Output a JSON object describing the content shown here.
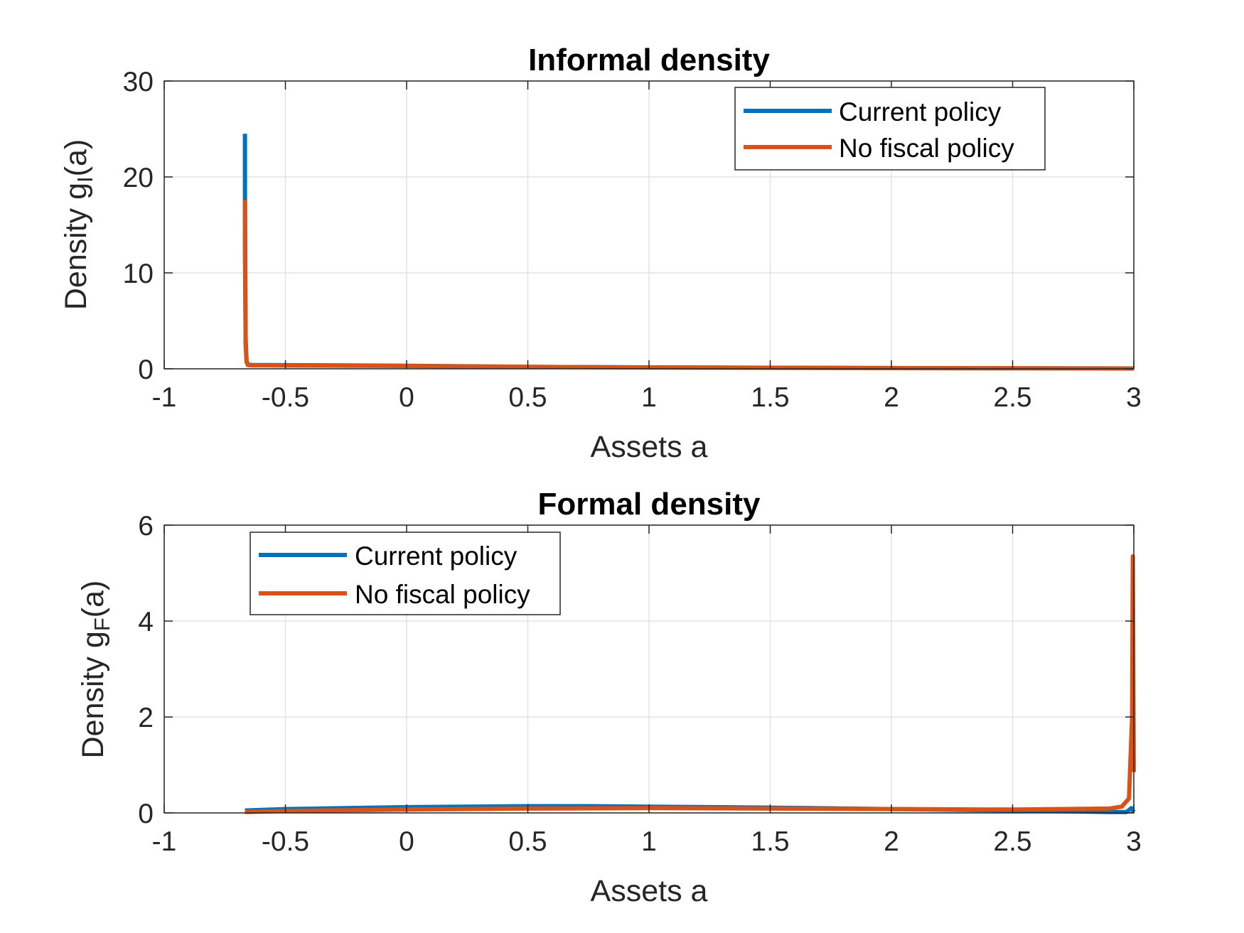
{
  "colors": {
    "current": "#0072BD",
    "nofiscal": "#D95319",
    "grid": "#e3e3e3",
    "axis": "#262626"
  },
  "chart_data": [
    {
      "type": "line",
      "title": "Informal density",
      "xlabel": "Assets a",
      "ylabel": {
        "prefix": "Density g",
        "sub": "I",
        "suffix": "(a)"
      },
      "xlim": [
        -1,
        3
      ],
      "ylim": [
        0,
        30
      ],
      "xticks": [
        -1,
        -0.5,
        0,
        0.5,
        1,
        1.5,
        2,
        2.5,
        3
      ],
      "xtick_labels": [
        "-1",
        "-0.5",
        "0",
        "0.5",
        "1",
        "1.5",
        "2",
        "2.5",
        "3"
      ],
      "yticks": [
        0,
        10,
        20,
        30
      ],
      "ytick_labels": [
        "0",
        "10",
        "20",
        "30"
      ],
      "grid": true,
      "legend_position": "top-right",
      "series": [
        {
          "name": "Current policy",
          "x": [
            -0.667,
            -0.667,
            -0.664,
            -0.66,
            -0.655,
            -0.64,
            -0.5,
            0,
            0.5,
            1,
            1.5,
            2,
            2.5,
            3
          ],
          "y": [
            24.5,
            18,
            3,
            0.8,
            0.45,
            0.4,
            0.38,
            0.32,
            0.2,
            0.15,
            0.11,
            0.08,
            0.05,
            0.04
          ]
        },
        {
          "name": "No fiscal policy",
          "x": [
            -0.667,
            -0.667,
            -0.664,
            -0.66,
            -0.655,
            -0.64,
            -0.5,
            0,
            0.5,
            1,
            1.5,
            2,
            2.5,
            3
          ],
          "y": [
            17.6,
            12,
            2.5,
            0.7,
            0.4,
            0.36,
            0.34,
            0.3,
            0.2,
            0.14,
            0.1,
            0.07,
            0.05,
            0.03
          ]
        }
      ]
    },
    {
      "type": "line",
      "title": "Formal density",
      "xlabel": "Assets a",
      "ylabel": {
        "prefix": "Density g",
        "sub": "F",
        "suffix": "(a)"
      },
      "xlim": [
        -1,
        3
      ],
      "ylim": [
        0,
        6
      ],
      "xticks": [
        -1,
        -0.5,
        0,
        0.5,
        1,
        1.5,
        2,
        2.5,
        3
      ],
      "xtick_labels": [
        "-1",
        "-0.5",
        "0",
        "0.5",
        "1",
        "1.5",
        "2",
        "2.5",
        "3"
      ],
      "yticks": [
        0,
        2,
        4,
        6
      ],
      "ytick_labels": [
        "0",
        "2",
        "4",
        "6"
      ],
      "grid": true,
      "legend_position": "top-left",
      "series": [
        {
          "name": "Current policy",
          "x": [
            -0.667,
            -0.5,
            0,
            0.5,
            0.75,
            1,
            1.5,
            2,
            2.5,
            2.9,
            2.97,
            2.99,
            3.0
          ],
          "y": [
            0.05,
            0.08,
            0.12,
            0.14,
            0.14,
            0.13,
            0.11,
            0.08,
            0.05,
            0.02,
            0.02,
            0.1,
            0.02
          ]
        },
        {
          "name": "No fiscal policy",
          "x": [
            -0.667,
            -0.5,
            0,
            0.5,
            1,
            1.5,
            2,
            2.5,
            2.9,
            2.95,
            2.98,
            2.993,
            2.996,
            2.998,
            3.0
          ],
          "y": [
            0.02,
            0.04,
            0.07,
            0.09,
            0.1,
            0.09,
            0.08,
            0.07,
            0.09,
            0.13,
            0.3,
            2.0,
            5.35,
            3.0,
            0.85
          ]
        }
      ]
    }
  ]
}
